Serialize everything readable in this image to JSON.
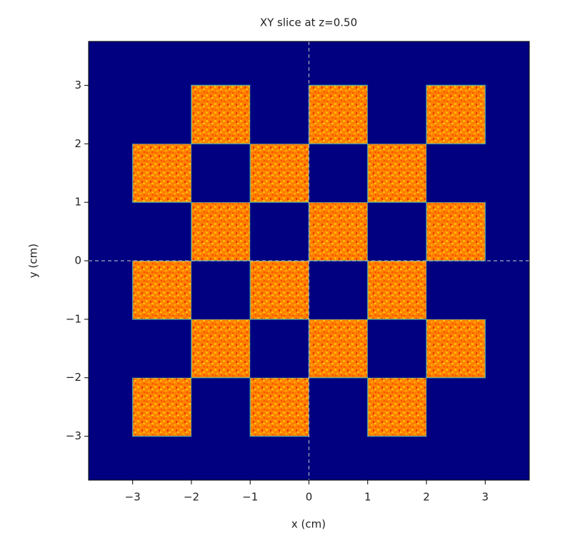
{
  "chart_data": {
    "type": "heatmap",
    "title": "XY slice at z=0.50",
    "xlabel": "x (cm)",
    "ylabel": "y (cm)",
    "x_edges": [
      -3,
      -2,
      -1,
      0,
      1,
      2,
      3
    ],
    "y_edges": [
      -3,
      -2,
      -1,
      0,
      1,
      2,
      3
    ],
    "z": [
      [
        0.75,
        0,
        0.75,
        0,
        0.75,
        0
      ],
      [
        0,
        0.75,
        0,
        0.75,
        0,
        0.75
      ],
      [
        0.75,
        0,
        0.75,
        0,
        0.75,
        0
      ],
      [
        0,
        0.75,
        0,
        0.75,
        0,
        0.75
      ],
      [
        0.75,
        0,
        0.75,
        0,
        0.75,
        0
      ],
      [
        0,
        0.75,
        0,
        0.75,
        0,
        0.75
      ]
    ],
    "colormap": "jet",
    "clim": [
      0,
      1
    ],
    "xlim": [
      -3.75,
      3.75
    ],
    "ylim": [
      -3.75,
      3.75
    ],
    "xticks": [
      {
        "value": -3,
        "label": "−3"
      },
      {
        "value": -2,
        "label": "−2"
      },
      {
        "value": -1,
        "label": "−1"
      },
      0,
      1,
      2,
      3
    ],
    "yticks": [
      {
        "value": -3,
        "label": "−3"
      },
      {
        "value": -2,
        "label": "−2"
      },
      {
        "value": -1,
        "label": "−1"
      },
      0,
      1,
      2,
      3
    ],
    "crosshair": {
      "x": 0,
      "y": 0
    }
  }
}
